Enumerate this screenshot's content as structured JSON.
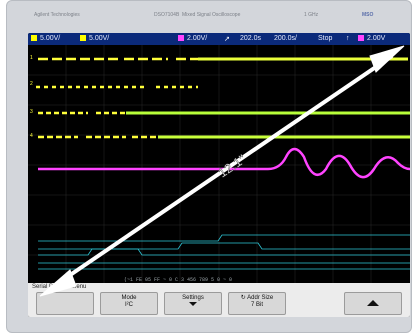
{
  "device": {
    "brand": "Agilent Technologies",
    "model": "DSO7104B",
    "model_desc": "Mixed Signal Oscilloscope",
    "spec": "1 GHz",
    "logo": "MSO"
  },
  "status_bar": {
    "ch1_scale": "5.00V/",
    "ch2_scale": "5.00V/",
    "ch3_scale": "2.00V/",
    "time_pos": "202.0s",
    "time_scale": "200.0s/",
    "acq_mode": "Stop",
    "trigger_level": "2.00V",
    "ch1_color": "#ffff00",
    "ch2_color": "#ffff00",
    "ch3_color": "#ff44ff",
    "trig_color": "#ff44ff"
  },
  "screen": {
    "diagonal_label": "12.1\"",
    "decode_text": "(~1 FE 05 FF ~ 0 C 3 456 789 5 0 ~ 0"
  },
  "menu": {
    "title": "Serial Decode Menu",
    "softkeys": [
      {
        "line1": "",
        "line2": ""
      },
      {
        "line1": "Mode",
        "line2": "I²C"
      },
      {
        "line1": "Settings",
        "line2": ""
      },
      {
        "line1": "Addr Size",
        "line2": "7 Bit"
      },
      {
        "line1": "",
        "line2": ""
      }
    ]
  },
  "colors": {
    "bezel": "#d3d6db",
    "screen_bg": "#000000",
    "status_bg": "#0b2a7a",
    "digital": "#ffff3a",
    "analog_green": "#9cff3a",
    "analog_magenta": "#ff44ff",
    "bus_cyan": "#2ec8d8"
  }
}
